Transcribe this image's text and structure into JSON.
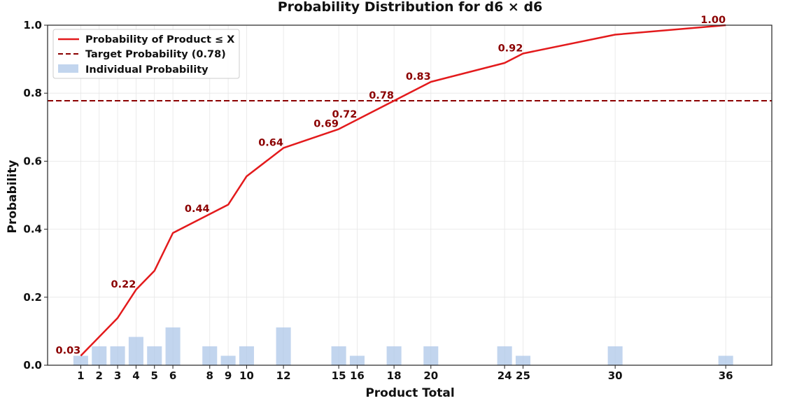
{
  "chart_data": {
    "type": "line",
    "title": "Probability Distribution for d6 × d6",
    "xlabel": "Product Total",
    "ylabel": "Probability",
    "xlim": [
      -0.8,
      38.5
    ],
    "ylim": [
      0,
      1.0
    ],
    "x": [
      1,
      2,
      3,
      4,
      5,
      6,
      8,
      9,
      10,
      12,
      15,
      16,
      18,
      20,
      24,
      25,
      30,
      36
    ],
    "x_tick_labels": [
      "1",
      "2",
      "3",
      "4",
      "5",
      "6",
      "8",
      "9",
      "10",
      "12",
      "15",
      "16",
      "18",
      "20",
      "24",
      "25",
      "30",
      "36"
    ],
    "y_ticks": [
      0.0,
      0.2,
      0.4,
      0.6,
      0.8,
      1.0
    ],
    "y_tick_labels": [
      "0.0",
      "0.2",
      "0.4",
      "0.6",
      "0.8",
      "1.0"
    ],
    "grid": true,
    "legend_position": "top-left",
    "series": [
      {
        "name": "Probability of Product ≤ X",
        "type": "line",
        "color": "#e31a1c",
        "values": [
          0.0278,
          0.0833,
          0.1389,
          0.2222,
          0.2778,
          0.3889,
          0.4444,
          0.4722,
          0.5556,
          0.6389,
          0.6944,
          0.7222,
          0.7778,
          0.8333,
          0.8889,
          0.9167,
          0.9722,
          1.0
        ]
      },
      {
        "name": "Individual Probability",
        "type": "bar",
        "color": "#aec7e8",
        "values": [
          0.0278,
          0.0556,
          0.0556,
          0.0833,
          0.0556,
          0.1111,
          0.0556,
          0.0278,
          0.0556,
          0.1111,
          0.0556,
          0.0278,
          0.0556,
          0.0556,
          0.0556,
          0.0278,
          0.0556,
          0.0278
        ]
      }
    ],
    "target": {
      "name": "Target Probability (0.78)",
      "value": 0.7778,
      "color": "#8b0000"
    },
    "annotations": [
      {
        "x": 1,
        "y": 0.0278,
        "text": "0.03"
      },
      {
        "x": 4,
        "y": 0.2222,
        "text": "0.22"
      },
      {
        "x": 8,
        "y": 0.4444,
        "text": "0.44"
      },
      {
        "x": 12,
        "y": 0.6389,
        "text": "0.64"
      },
      {
        "x": 15,
        "y": 0.6944,
        "text": "0.69"
      },
      {
        "x": 16,
        "y": 0.7222,
        "text": "0.72"
      },
      {
        "x": 18,
        "y": 0.7778,
        "text": "0.78"
      },
      {
        "x": 20,
        "y": 0.8333,
        "text": "0.83"
      },
      {
        "x": 25,
        "y": 0.9167,
        "text": "0.92"
      },
      {
        "x": 36,
        "y": 1.0,
        "text": "1.00"
      }
    ]
  }
}
